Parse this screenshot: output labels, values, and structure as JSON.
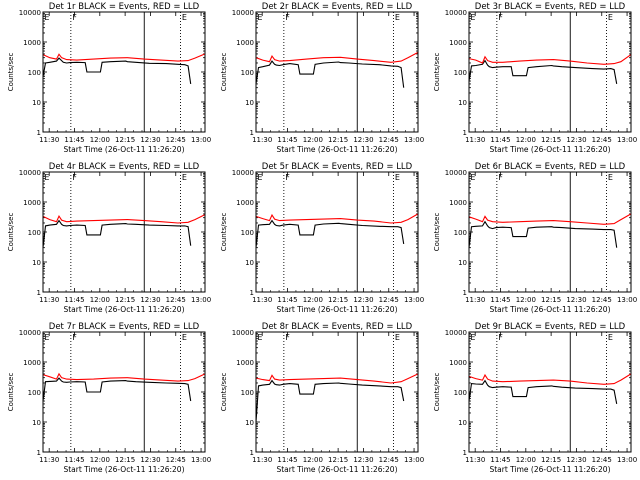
{
  "figure": {
    "title_template": "BLACK = Events, RED = LLD",
    "xlabel": "Start Time (26-Oct-11 11:26:20)",
    "ylabel": "Counts/sec",
    "x_ticks": [
      "11:30",
      "11:45",
      "12:00",
      "12:15",
      "12:30",
      "12:45",
      "13:00"
    ],
    "y_ticks": [
      "1",
      "10",
      "100",
      "1000",
      "10000"
    ],
    "marker_labels": [
      "E",
      "F",
      "E"
    ],
    "colors": {
      "events": "#000000",
      "lld": "#ff0000"
    }
  },
  "chart_data": [
    {
      "panel": "Det 1r",
      "title": "Det 1r BLACK = Events, RED = LLD",
      "type": "line",
      "xlabel": "Start Time (26-Oct-11 11:26:20)",
      "ylabel": "Counts/sec",
      "xlim_min": [
        0,
        96
      ],
      "ylim": [
        1,
        10000
      ],
      "yscale": "log",
      "vertical_lines": {
        "dotted": [
          16.5,
          81.5
        ],
        "solid": [
          60
        ]
      },
      "series": [
        {
          "name": "Events",
          "color": "#000000",
          "x_min": [
            0,
            1.5,
            4,
            8,
            9.5,
            11,
            12,
            14,
            16,
            20,
            25,
            26,
            34,
            35,
            40,
            49,
            50,
            55,
            63,
            73,
            80,
            84,
            86,
            87.5
          ],
          "y": [
            70,
            200,
            210,
            230,
            290,
            240,
            210,
            200,
            205,
            210,
            205,
            100,
            100,
            210,
            220,
            230,
            220,
            210,
            195,
            190,
            180,
            175,
            160,
            40
          ]
        },
        {
          "name": "LLD",
          "color": "#ff0000",
          "x_min": [
            0,
            4,
            8,
            9.5,
            11,
            14,
            20,
            30,
            40,
            50,
            60,
            70,
            80,
            86,
            90,
            96
          ],
          "y": [
            380,
            300,
            270,
            390,
            300,
            260,
            250,
            270,
            290,
            300,
            270,
            250,
            230,
            240,
            290,
            400
          ]
        }
      ]
    },
    {
      "panel": "Det 2r",
      "title": "Det 2r BLACK = Events, RED = LLD",
      "type": "line",
      "xlabel": "Start Time (26-Oct-11 11:26:20)",
      "ylabel": "Counts/sec",
      "xlim_min": [
        0,
        96
      ],
      "ylim": [
        1,
        10000
      ],
      "yscale": "log",
      "vertical_lines": {
        "dotted": [
          16.5,
          81.5
        ],
        "solid": [
          60
        ]
      },
      "series": [
        {
          "name": "Events",
          "color": "#000000",
          "x_min": [
            0,
            1.5,
            4,
            8,
            9.5,
            11,
            12,
            14,
            16,
            20,
            25,
            26,
            34,
            35,
            40,
            49,
            50,
            55,
            63,
            73,
            80,
            84,
            86,
            87.5
          ],
          "y": [
            40,
            140,
            150,
            170,
            230,
            180,
            170,
            165,
            175,
            190,
            175,
            85,
            85,
            180,
            200,
            215,
            205,
            200,
            185,
            175,
            160,
            155,
            140,
            30
          ]
        },
        {
          "name": "LLD",
          "color": "#ff0000",
          "x_min": [
            0,
            4,
            8,
            9.5,
            11,
            14,
            20,
            30,
            40,
            50,
            60,
            70,
            80,
            86,
            90,
            96
          ],
          "y": [
            300,
            250,
            220,
            340,
            260,
            230,
            240,
            270,
            300,
            310,
            270,
            240,
            210,
            230,
            300,
            450
          ]
        }
      ]
    },
    {
      "panel": "Det 3r",
      "title": "Det 3r BLACK = Events, RED = LLD",
      "type": "line",
      "xlabel": "Start Time (26-Oct-11 11:26:20)",
      "ylabel": "Counts/sec",
      "xlim_min": [
        0,
        96
      ],
      "ylim": [
        1,
        10000
      ],
      "yscale": "log",
      "vertical_lines": {
        "dotted": [
          16.5,
          81.5
        ],
        "solid": [
          60
        ]
      },
      "series": [
        {
          "name": "Events",
          "color": "#000000",
          "x_min": [
            0,
            1.5,
            4,
            8,
            9.5,
            11,
            12,
            14,
            16,
            20,
            25,
            26,
            34,
            35,
            40,
            49,
            50,
            55,
            63,
            73,
            80,
            84,
            86,
            87.5
          ],
          "y": [
            50,
            160,
            165,
            180,
            240,
            170,
            150,
            140,
            145,
            150,
            150,
            75,
            75,
            140,
            150,
            165,
            160,
            150,
            140,
            130,
            125,
            130,
            120,
            40
          ]
        },
        {
          "name": "LLD",
          "color": "#ff0000",
          "x_min": [
            0,
            4,
            8,
            9.5,
            11,
            14,
            20,
            30,
            40,
            50,
            60,
            70,
            80,
            86,
            90,
            96
          ],
          "y": [
            280,
            250,
            200,
            320,
            240,
            210,
            210,
            230,
            250,
            260,
            230,
            200,
            180,
            190,
            220,
            380
          ]
        }
      ]
    },
    {
      "panel": "Det 4r",
      "title": "Det 4r BLACK = Events, RED = LLD",
      "type": "line",
      "xlabel": "Start Time (26-Oct-11 11:26:20)",
      "ylabel": "Counts/sec",
      "xlim_min": [
        0,
        96
      ],
      "ylim": [
        1,
        10000
      ],
      "yscale": "log",
      "vertical_lines": {
        "dotted": [
          16.5,
          81.5
        ],
        "solid": [
          60
        ]
      },
      "series": [
        {
          "name": "Events",
          "color": "#000000",
          "x_min": [
            0,
            1.5,
            4,
            8,
            9.5,
            11,
            12,
            14,
            16,
            20,
            25,
            26,
            34,
            35,
            40,
            49,
            50,
            55,
            63,
            73,
            80,
            84,
            86,
            87.5
          ],
          "y": [
            30,
            160,
            170,
            180,
            240,
            180,
            165,
            160,
            165,
            170,
            165,
            80,
            80,
            170,
            180,
            190,
            185,
            180,
            170,
            165,
            160,
            160,
            150,
            35
          ]
        },
        {
          "name": "LLD",
          "color": "#ff0000",
          "x_min": [
            0,
            4,
            8,
            9.5,
            11,
            14,
            20,
            30,
            40,
            50,
            60,
            70,
            80,
            86,
            90,
            96
          ],
          "y": [
            330,
            260,
            220,
            340,
            250,
            220,
            230,
            240,
            250,
            260,
            240,
            220,
            200,
            210,
            260,
            380
          ]
        }
      ]
    },
    {
      "panel": "Det 5r",
      "title": "Det 5r BLACK = Events, RED = LLD",
      "type": "line",
      "xlabel": "Start Time (26-Oct-11 11:26:20)",
      "ylabel": "Counts/sec",
      "xlim_min": [
        0,
        96
      ],
      "ylim": [
        1,
        10000
      ],
      "yscale": "log",
      "vertical_lines": {
        "dotted": [
          16.5,
          81.5
        ],
        "solid": [
          60
        ]
      },
      "series": [
        {
          "name": "Events",
          "color": "#000000",
          "x_min": [
            0,
            1.5,
            4,
            8,
            9.5,
            11,
            12,
            14,
            16,
            20,
            25,
            26,
            34,
            35,
            40,
            49,
            50,
            55,
            63,
            73,
            80,
            84,
            86,
            87.5
          ],
          "y": [
            30,
            170,
            175,
            180,
            240,
            180,
            165,
            160,
            170,
            180,
            170,
            80,
            80,
            170,
            185,
            195,
            190,
            180,
            165,
            155,
            150,
            150,
            140,
            40
          ]
        },
        {
          "name": "LLD",
          "color": "#ff0000",
          "x_min": [
            0,
            4,
            8,
            9.5,
            11,
            14,
            20,
            30,
            40,
            50,
            60,
            70,
            80,
            86,
            90,
            96
          ],
          "y": [
            330,
            280,
            240,
            370,
            270,
            240,
            250,
            260,
            270,
            280,
            250,
            230,
            200,
            210,
            260,
            400
          ]
        }
      ]
    },
    {
      "panel": "Det 6r",
      "title": "Det 6r BLACK = Events, RED = LLD",
      "type": "line",
      "xlabel": "Start Time (26-Oct-11 11:26:20)",
      "ylabel": "Counts/sec",
      "xlim_min": [
        0,
        96
      ],
      "ylim": [
        1,
        10000
      ],
      "yscale": "log",
      "vertical_lines": {
        "dotted": [
          16.5,
          81.5
        ],
        "solid": [
          60
        ]
      },
      "series": [
        {
          "name": "Events",
          "color": "#000000",
          "x_min": [
            0,
            1.5,
            4,
            8,
            9.5,
            11,
            12,
            14,
            16,
            20,
            25,
            26,
            34,
            35,
            40,
            49,
            50,
            55,
            63,
            73,
            80,
            84,
            86,
            87.5
          ],
          "y": [
            30,
            150,
            155,
            160,
            220,
            160,
            140,
            130,
            140,
            145,
            140,
            70,
            70,
            135,
            145,
            150,
            145,
            140,
            130,
            125,
            120,
            120,
            115,
            30
          ]
        },
        {
          "name": "LLD",
          "color": "#ff0000",
          "x_min": [
            0,
            4,
            8,
            9.5,
            11,
            14,
            20,
            30,
            40,
            50,
            60,
            70,
            80,
            86,
            90,
            96
          ],
          "y": [
            320,
            270,
            220,
            330,
            250,
            220,
            210,
            220,
            230,
            240,
            220,
            200,
            180,
            190,
            260,
            400
          ]
        }
      ]
    },
    {
      "panel": "Det 7r",
      "title": "Det 7r BLACK = Events, RED = LLD",
      "type": "line",
      "xlabel": "Start Time (26-Oct-11 11:26:20)",
      "ylabel": "Counts/sec",
      "xlim_min": [
        0,
        96
      ],
      "ylim": [
        1,
        10000
      ],
      "yscale": "log",
      "vertical_lines": {
        "dotted": [
          16.5,
          81.5
        ],
        "solid": [
          60
        ]
      },
      "series": [
        {
          "name": "Events",
          "color": "#000000",
          "x_min": [
            0,
            1.5,
            4,
            8,
            9.5,
            11,
            12,
            14,
            16,
            20,
            25,
            26,
            34,
            35,
            40,
            49,
            50,
            55,
            63,
            73,
            80,
            84,
            86,
            87.5
          ],
          "y": [
            50,
            220,
            225,
            230,
            290,
            230,
            215,
            210,
            215,
            220,
            215,
            100,
            100,
            215,
            230,
            240,
            230,
            220,
            210,
            200,
            195,
            190,
            180,
            50
          ]
        },
        {
          "name": "LLD",
          "color": "#ff0000",
          "x_min": [
            0,
            4,
            8,
            9.5,
            11,
            14,
            20,
            30,
            40,
            50,
            60,
            70,
            80,
            86,
            90,
            96
          ],
          "y": [
            380,
            320,
            270,
            400,
            300,
            270,
            260,
            270,
            290,
            300,
            270,
            250,
            230,
            240,
            280,
            400
          ]
        }
      ]
    },
    {
      "panel": "Det 8r",
      "title": "Det 8r BLACK = Events, RED = LLD",
      "type": "line",
      "xlabel": "Start Time (26-Oct-11 11:26:20)",
      "ylabel": "Counts/sec",
      "xlim_min": [
        0,
        96
      ],
      "ylim": [
        1,
        10000
      ],
      "yscale": "log",
      "vertical_lines": {
        "dotted": [
          16.5,
          81.5
        ],
        "solid": [
          60
        ]
      },
      "series": [
        {
          "name": "Events",
          "color": "#000000",
          "x_min": [
            0,
            1.5,
            4,
            8,
            9.5,
            11,
            12,
            14,
            16,
            20,
            25,
            26,
            34,
            35,
            40,
            49,
            50,
            55,
            63,
            73,
            80,
            84,
            86,
            87.5
          ],
          "y": [
            10,
            160,
            170,
            180,
            240,
            185,
            175,
            170,
            180,
            190,
            180,
            85,
            85,
            180,
            190,
            200,
            195,
            185,
            170,
            160,
            150,
            150,
            140,
            50
          ]
        },
        {
          "name": "LLD",
          "color": "#ff0000",
          "x_min": [
            0,
            4,
            8,
            9.5,
            11,
            14,
            20,
            30,
            40,
            50,
            60,
            70,
            80,
            86,
            90,
            96
          ],
          "y": [
            290,
            260,
            240,
            360,
            270,
            250,
            260,
            270,
            280,
            290,
            260,
            230,
            200,
            220,
            280,
            400
          ]
        }
      ]
    },
    {
      "panel": "Det 9r",
      "title": "Det 9r BLACK = Events, RED = LLD",
      "type": "line",
      "xlabel": "Start Time (26-Oct-11 11:26:20)",
      "ylabel": "Counts/sec",
      "xlim_min": [
        0,
        96
      ],
      "ylim": [
        1,
        10000
      ],
      "yscale": "log",
      "vertical_lines": {
        "dotted": [
          16.5,
          81.5
        ],
        "solid": [
          60
        ]
      },
      "series": [
        {
          "name": "Events",
          "color": "#000000",
          "x_min": [
            0,
            1.5,
            4,
            8,
            9.5,
            11,
            12,
            14,
            16,
            20,
            25,
            26,
            34,
            35,
            40,
            49,
            50,
            55,
            63,
            73,
            80,
            84,
            86,
            87.5
          ],
          "y": [
            50,
            190,
            185,
            180,
            240,
            170,
            150,
            140,
            145,
            150,
            145,
            70,
            70,
            140,
            150,
            160,
            155,
            145,
            135,
            130,
            125,
            125,
            115,
            40
          ]
        },
        {
          "name": "LLD",
          "color": "#ff0000",
          "x_min": [
            0,
            4,
            8,
            9.5,
            11,
            14,
            20,
            30,
            40,
            50,
            60,
            70,
            80,
            86,
            90,
            96
          ],
          "y": [
            330,
            280,
            250,
            370,
            270,
            230,
            220,
            230,
            240,
            250,
            230,
            200,
            180,
            190,
            250,
            400
          ]
        }
      ]
    }
  ]
}
